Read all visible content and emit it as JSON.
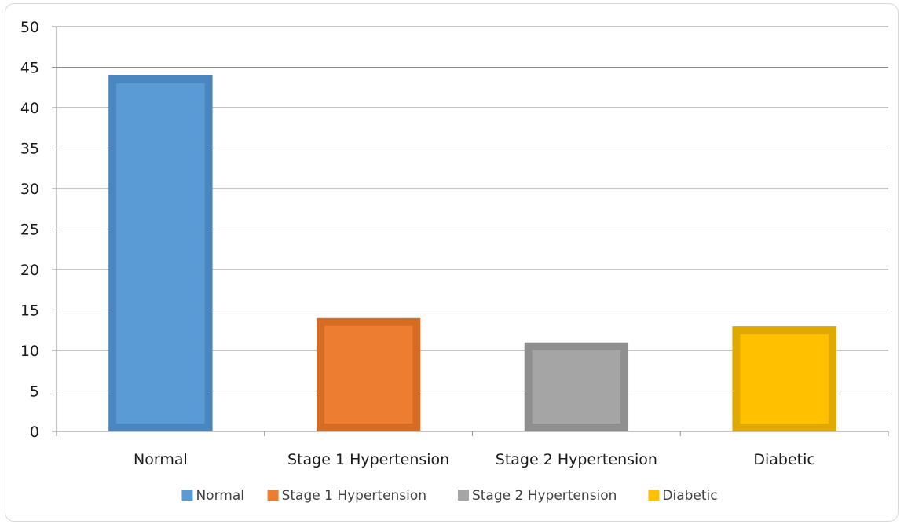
{
  "chart_data": {
    "type": "bar",
    "categories": [
      "Normal",
      "Stage 1 Hypertension",
      "Stage 2 Hypertension",
      "Diabetic"
    ],
    "values": [
      44,
      14,
      11,
      13
    ],
    "ylim": [
      0,
      50
    ],
    "ytick_step": 5,
    "yticks": [
      "0",
      "5",
      "10",
      "15",
      "20",
      "25",
      "30",
      "35",
      "40",
      "45",
      "50"
    ],
    "grid": true,
    "legend_position": "bottom",
    "legend": [
      "Normal",
      "Stage 1 Hypertension",
      "Stage 2 Hypertension",
      "Diabetic"
    ],
    "colors": {
      "fill": [
        "#5b9bd5",
        "#ed7d31",
        "#a5a5a5",
        "#ffc000"
      ],
      "border": [
        "#4a87c0",
        "#d66b24",
        "#8f8f8f",
        "#e0a800"
      ],
      "grid": "#8c8c8c",
      "axis": "#8c8c8c"
    }
  }
}
